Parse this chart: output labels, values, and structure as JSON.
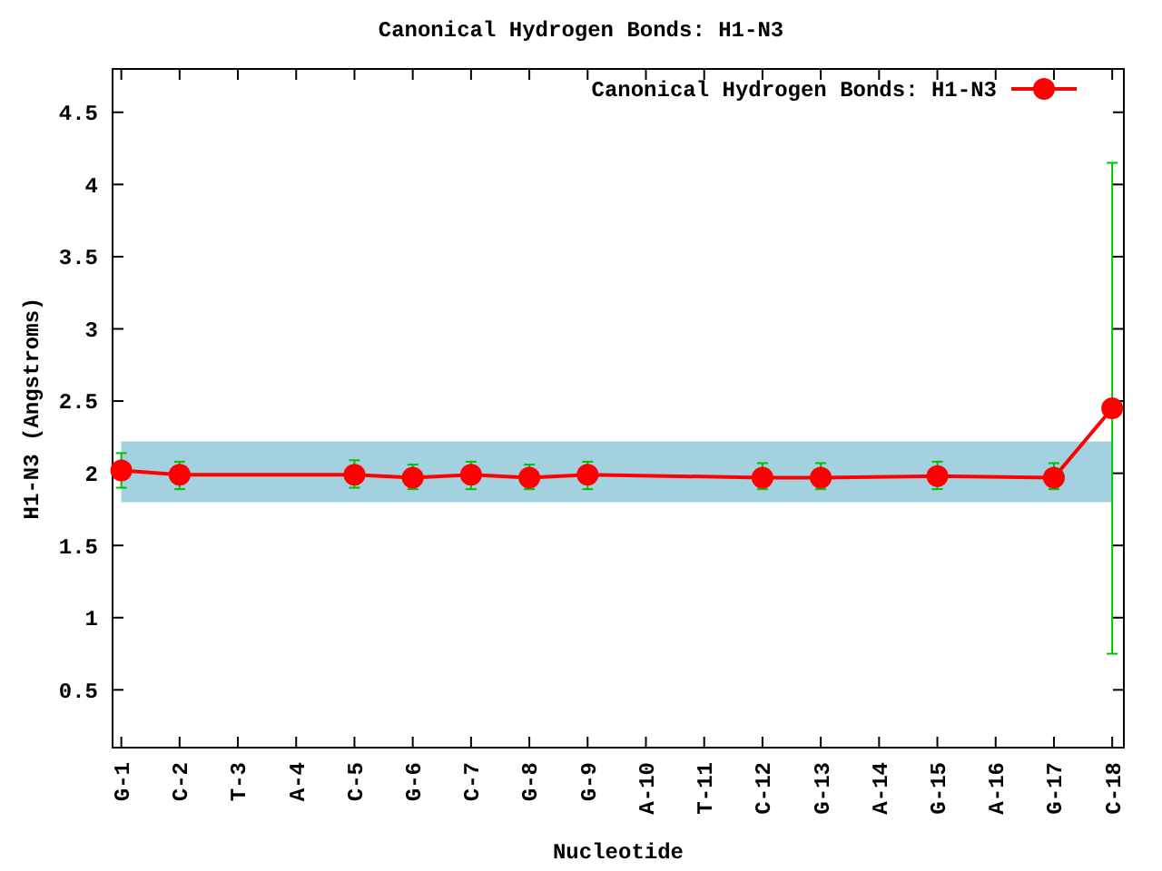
{
  "chart_data": {
    "type": "line",
    "title": "Canonical Hydrogen Bonds: H1-N3",
    "xlabel": "Nucleotide",
    "ylabel": "H1-N3 (Angstroms)",
    "categories": [
      "G-1",
      "C-2",
      "T-3",
      "A-4",
      "C-5",
      "G-6",
      "C-7",
      "G-8",
      "G-9",
      "A-10",
      "T-11",
      "C-12",
      "G-13",
      "A-14",
      "G-15",
      "A-16",
      "G-17",
      "C-18"
    ],
    "series": [
      {
        "name": "Canonical Hydrogen Bonds: H1-N3",
        "color": "#ff0000",
        "values": [
          2.02,
          1.99,
          null,
          null,
          1.99,
          1.97,
          1.99,
          1.97,
          1.99,
          null,
          null,
          1.97,
          1.97,
          null,
          1.98,
          null,
          1.97,
          2.45
        ],
        "errors": [
          [
            1.9,
            2.14
          ],
          [
            1.89,
            2.08
          ],
          null,
          null,
          [
            1.9,
            2.09
          ],
          [
            1.89,
            2.06
          ],
          [
            1.89,
            2.08
          ],
          [
            1.89,
            2.06
          ],
          [
            1.89,
            2.08
          ],
          null,
          null,
          [
            1.89,
            2.07
          ],
          [
            1.89,
            2.07
          ],
          null,
          [
            1.89,
            2.08
          ],
          null,
          [
            1.89,
            2.07
          ],
          [
            0.75,
            4.15
          ]
        ]
      }
    ],
    "bands": [
      {
        "axis": "y",
        "from": 1.8,
        "to": 2.22,
        "color": "#a4d1df"
      }
    ],
    "ylim": [
      0.1,
      4.8
    ],
    "yticks": [
      0.5,
      1,
      1.5,
      2,
      2.5,
      3,
      3.5,
      4,
      4.5
    ],
    "marker": "circle",
    "legend": "top right",
    "grid": false
  }
}
